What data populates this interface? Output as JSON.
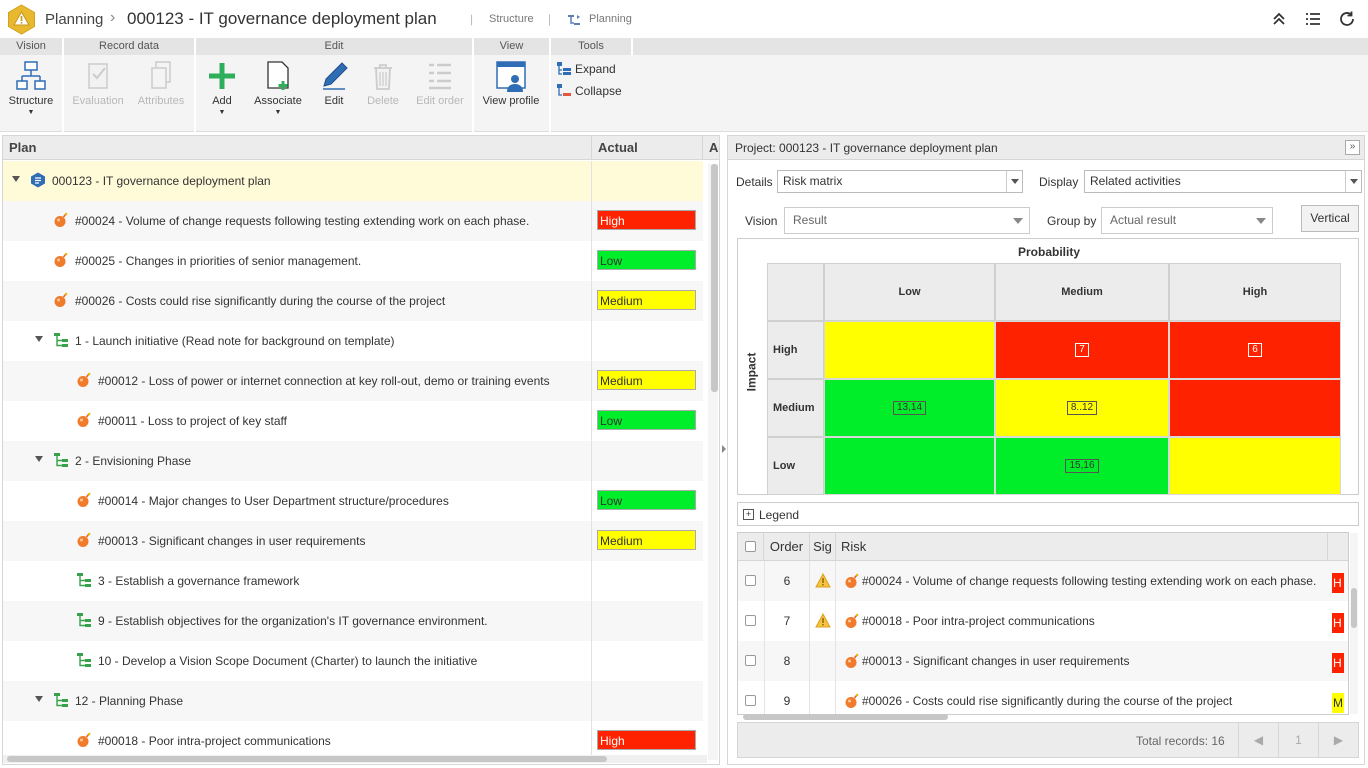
{
  "header": {
    "app_name": "Planning",
    "breadcrumb_sep": "›",
    "title": "000123 - IT governance deployment plan",
    "separator": "|",
    "link_structure": "Structure",
    "link_planning": "Planning"
  },
  "ribbon": {
    "groups": [
      "Vision",
      "Record data",
      "Edit",
      "View",
      "Tools"
    ],
    "structure": "Structure",
    "evaluation": "Evaluation",
    "attributes": "Attributes",
    "add": "Add",
    "associate": "Associate",
    "edit": "Edit",
    "delete": "Delete",
    "edit_order": "Edit order",
    "view_profile": "View profile",
    "expand": "Expand",
    "collapse": "Collapse"
  },
  "plan": {
    "col_plan": "Plan",
    "col_actual": "Actual",
    "col_extra": "Ac",
    "rows": [
      {
        "text": "000123 - IT governance deployment plan",
        "actual": ""
      },
      {
        "text": "#00024 - Volume of change requests following testing extending work on each phase.",
        "actual": "High"
      },
      {
        "text": "#00025 - Changes in priorities of senior management.",
        "actual": "Low"
      },
      {
        "text": "#00026 - Costs could rise significantly during the course of the project",
        "actual": "Medium"
      },
      {
        "text": "1 - Launch initiative (Read note for background on template)",
        "actual": ""
      },
      {
        "text": "#00012 - Loss of power or internet connection at key roll-out, demo or training events",
        "actual": "Medium"
      },
      {
        "text": "#00011 - Loss to project of key staff",
        "actual": "Low"
      },
      {
        "text": "2 - Envisioning Phase",
        "actual": ""
      },
      {
        "text": "#00014 - Major changes to User Department structure/procedures",
        "actual": "Low"
      },
      {
        "text": "#00013 - Significant changes in user requirements",
        "actual": "Medium"
      },
      {
        "text": "3 - Establish a governance framework",
        "actual": ""
      },
      {
        "text": "9 - Establish objectives for the organization's IT governance environment.",
        "actual": ""
      },
      {
        "text": "10 - Develop a Vision Scope Document (Charter) to launch the initiative",
        "actual": ""
      },
      {
        "text": "12 - Planning Phase",
        "actual": ""
      },
      {
        "text": "#00018 - Poor intra-project communications",
        "actual": "High"
      }
    ]
  },
  "colors": {
    "high": "#ff2200",
    "medium": "#ffff00",
    "low": "#00ee2a",
    "selected_row": "#fffbd8"
  },
  "panel": {
    "title": "Project: 000123 - IT governance deployment plan",
    "collapse_glyph": "»",
    "details_label": "Details",
    "details_value": "Risk matrix",
    "display_label": "Display",
    "display_value": "Related activities",
    "vision_label": "Vision",
    "vision_value": "Result",
    "group_by_label": "Group by",
    "group_by_value": "Actual result",
    "vertical_btn": "Vertical",
    "matrix": {
      "x_title": "Probability",
      "y_title": "Impact",
      "cols": [
        "Low",
        "Medium",
        "High"
      ],
      "rows": [
        "High",
        "Medium",
        "Low"
      ],
      "cells": [
        [
          {
            "level": "medium",
            "label": ""
          },
          {
            "level": "high",
            "label": "7"
          },
          {
            "level": "high",
            "label": "6"
          }
        ],
        [
          {
            "level": "low",
            "label": "13,14"
          },
          {
            "level": "medium",
            "label": "8..12"
          },
          {
            "level": "high",
            "label": ""
          }
        ],
        [
          {
            "level": "low",
            "label": ""
          },
          {
            "level": "low",
            "label": "15,16"
          },
          {
            "level": "medium",
            "label": ""
          }
        ]
      ]
    },
    "legend_icon": "+",
    "legend_label": "Legend",
    "grid": {
      "col_order": "Order",
      "col_sig": "Sig",
      "col_risk": "Risk",
      "rows": [
        {
          "order": "6",
          "sig": true,
          "risk": "#00024 - Volume of change requests following testing extending work on each phase.",
          "badge": "H",
          "level": "high"
        },
        {
          "order": "7",
          "sig": true,
          "risk": "#00018 - Poor intra-project communications",
          "badge": "H",
          "level": "high"
        },
        {
          "order": "8",
          "sig": false,
          "risk": "#00013 - Significant changes in user requirements",
          "badge": "H",
          "level": "high"
        },
        {
          "order": "9",
          "sig": false,
          "risk": "#00026 - Costs could rise significantly during the course of the project",
          "badge": "M",
          "level": "medium"
        }
      ]
    },
    "total_records": "Total records: 16",
    "page": "1"
  }
}
